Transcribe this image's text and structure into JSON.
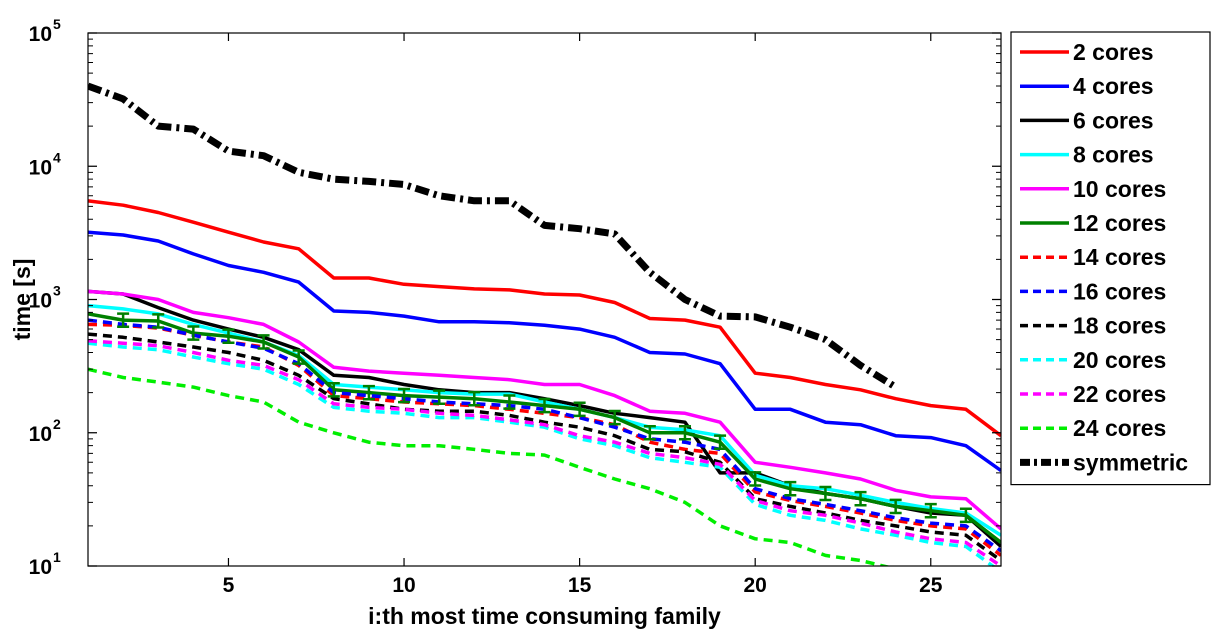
{
  "chart_data": {
    "type": "line",
    "xlabel": "i:th most time consuming family",
    "ylabel": "time [s]",
    "xlim": [
      1,
      27
    ],
    "ylim": [
      10,
      100000
    ],
    "yscale": "log",
    "xticks": [
      5,
      10,
      15,
      20,
      25
    ],
    "yticks": [
      {
        "value": 10,
        "base": "10",
        "exp": "1"
      },
      {
        "value": 100,
        "base": "10",
        "exp": "2"
      },
      {
        "value": 1000,
        "base": "10",
        "exp": "3"
      },
      {
        "value": 10000,
        "base": "10",
        "exp": "4"
      },
      {
        "value": 100000,
        "base": "10",
        "exp": "5"
      }
    ],
    "grid": false,
    "legend_position": "outside-right",
    "x": [
      1,
      2,
      3,
      4,
      5,
      6,
      7,
      8,
      9,
      10,
      11,
      12,
      13,
      14,
      15,
      16,
      17,
      18,
      19,
      20,
      21,
      22,
      23,
      24,
      25,
      26,
      27
    ],
    "series": [
      {
        "name": "2 cores",
        "color": "#ff0000",
        "dash": "solid",
        "values": [
          5500,
          5100,
          4500,
          3800,
          3200,
          2700,
          2400,
          1450,
          1450,
          1300,
          1250,
          1200,
          1180,
          1100,
          1080,
          950,
          720,
          700,
          620,
          280,
          260,
          230,
          210,
          180,
          160,
          150,
          95
        ]
      },
      {
        "name": "4 cores",
        "color": "#0000ff",
        "dash": "solid",
        "values": [
          3200,
          3050,
          2750,
          2200,
          1800,
          1600,
          1350,
          820,
          800,
          750,
          680,
          680,
          670,
          640,
          600,
          520,
          400,
          390,
          330,
          150,
          150,
          120,
          115,
          95,
          92,
          80,
          52
        ]
      },
      {
        "name": "6 cores",
        "color": "#000000",
        "dash": "solid",
        "values": [
          1150,
          1100,
          870,
          700,
          600,
          520,
          420,
          270,
          260,
          230,
          210,
          200,
          200,
          180,
          160,
          140,
          130,
          120,
          50,
          50,
          40,
          35,
          32,
          28,
          25,
          24,
          14
        ]
      },
      {
        "name": "8 cores",
        "color": "#00ffff",
        "dash": "solid",
        "values": [
          900,
          850,
          780,
          650,
          560,
          480,
          380,
          230,
          220,
          210,
          200,
          195,
          195,
          170,
          150,
          130,
          110,
          105,
          95,
          48,
          40,
          38,
          34,
          30,
          27,
          25,
          17
        ]
      },
      {
        "name": "10 cores",
        "color": "#ff00ff",
        "dash": "solid",
        "values": [
          1150,
          1100,
          1000,
          800,
          730,
          650,
          480,
          310,
          290,
          280,
          270,
          260,
          250,
          230,
          230,
          190,
          145,
          140,
          120,
          60,
          55,
          50,
          45,
          37,
          33,
          32,
          19
        ]
      },
      {
        "name": "12 cores",
        "color": "#008000",
        "dash": "solid",
        "values": [
          780,
          700,
          690,
          560,
          530,
          480,
          370,
          210,
          200,
          190,
          185,
          180,
          170,
          160,
          150,
          130,
          100,
          100,
          85,
          45,
          38,
          35,
          32,
          28,
          26,
          24,
          15
        ]
      },
      {
        "name": "14 cores",
        "color": "#ff0000",
        "dash": "dashed",
        "values": [
          650,
          640,
          610,
          540,
          480,
          440,
          320,
          190,
          180,
          170,
          165,
          160,
          150,
          140,
          130,
          115,
          85,
          75,
          70,
          36,
          31,
          28,
          25,
          22,
          20,
          19,
          12
        ]
      },
      {
        "name": "16 cores",
        "color": "#0000ff",
        "dash": "dashed",
        "values": [
          700,
          650,
          620,
          540,
          480,
          430,
          330,
          200,
          190,
          180,
          170,
          165,
          160,
          150,
          130,
          110,
          90,
          85,
          75,
          38,
          32,
          29,
          26,
          23,
          21,
          20,
          13
        ]
      },
      {
        "name": "18 cores",
        "color": "#000000",
        "dash": "dashed",
        "values": [
          550,
          520,
          480,
          440,
          400,
          350,
          270,
          180,
          165,
          150,
          145,
          145,
          135,
          120,
          110,
          95,
          75,
          72,
          60,
          32,
          28,
          25,
          22,
          20,
          18,
          17,
          11
        ]
      },
      {
        "name": "20 cores",
        "color": "#00ffff",
        "dash": "dashed",
        "values": [
          470,
          440,
          420,
          370,
          330,
          300,
          230,
          155,
          145,
          140,
          130,
          130,
          120,
          110,
          90,
          80,
          65,
          60,
          55,
          29,
          24,
          22,
          19,
          17,
          15,
          14,
          9
        ]
      },
      {
        "name": "22 cores",
        "color": "#ff00ff",
        "dash": "dashed",
        "values": [
          490,
          470,
          450,
          400,
          350,
          320,
          250,
          165,
          155,
          150,
          140,
          135,
          125,
          115,
          95,
          85,
          70,
          65,
          58,
          31,
          26,
          24,
          21,
          18,
          16,
          15,
          10
        ]
      },
      {
        "name": "24 cores",
        "color": "#00ee00",
        "dash": "dashed",
        "values": [
          300,
          260,
          240,
          220,
          190,
          170,
          120,
          100,
          85,
          80,
          80,
          75,
          70,
          68,
          55,
          45,
          38,
          30,
          20,
          16,
          15,
          12,
          11,
          9.5,
          8.5,
          null,
          null
        ]
      },
      {
        "name": "symmetric",
        "color": "#000000",
        "dash": "dashdot",
        "values": [
          40000,
          32000,
          20000,
          19000,
          13000,
          12000,
          9000,
          8000,
          7700,
          7300,
          6000,
          5500,
          5500,
          3600,
          3400,
          3100,
          1600,
          1000,
          750,
          740,
          620,
          500,
          320,
          220,
          null,
          null,
          null
        ]
      }
    ]
  }
}
